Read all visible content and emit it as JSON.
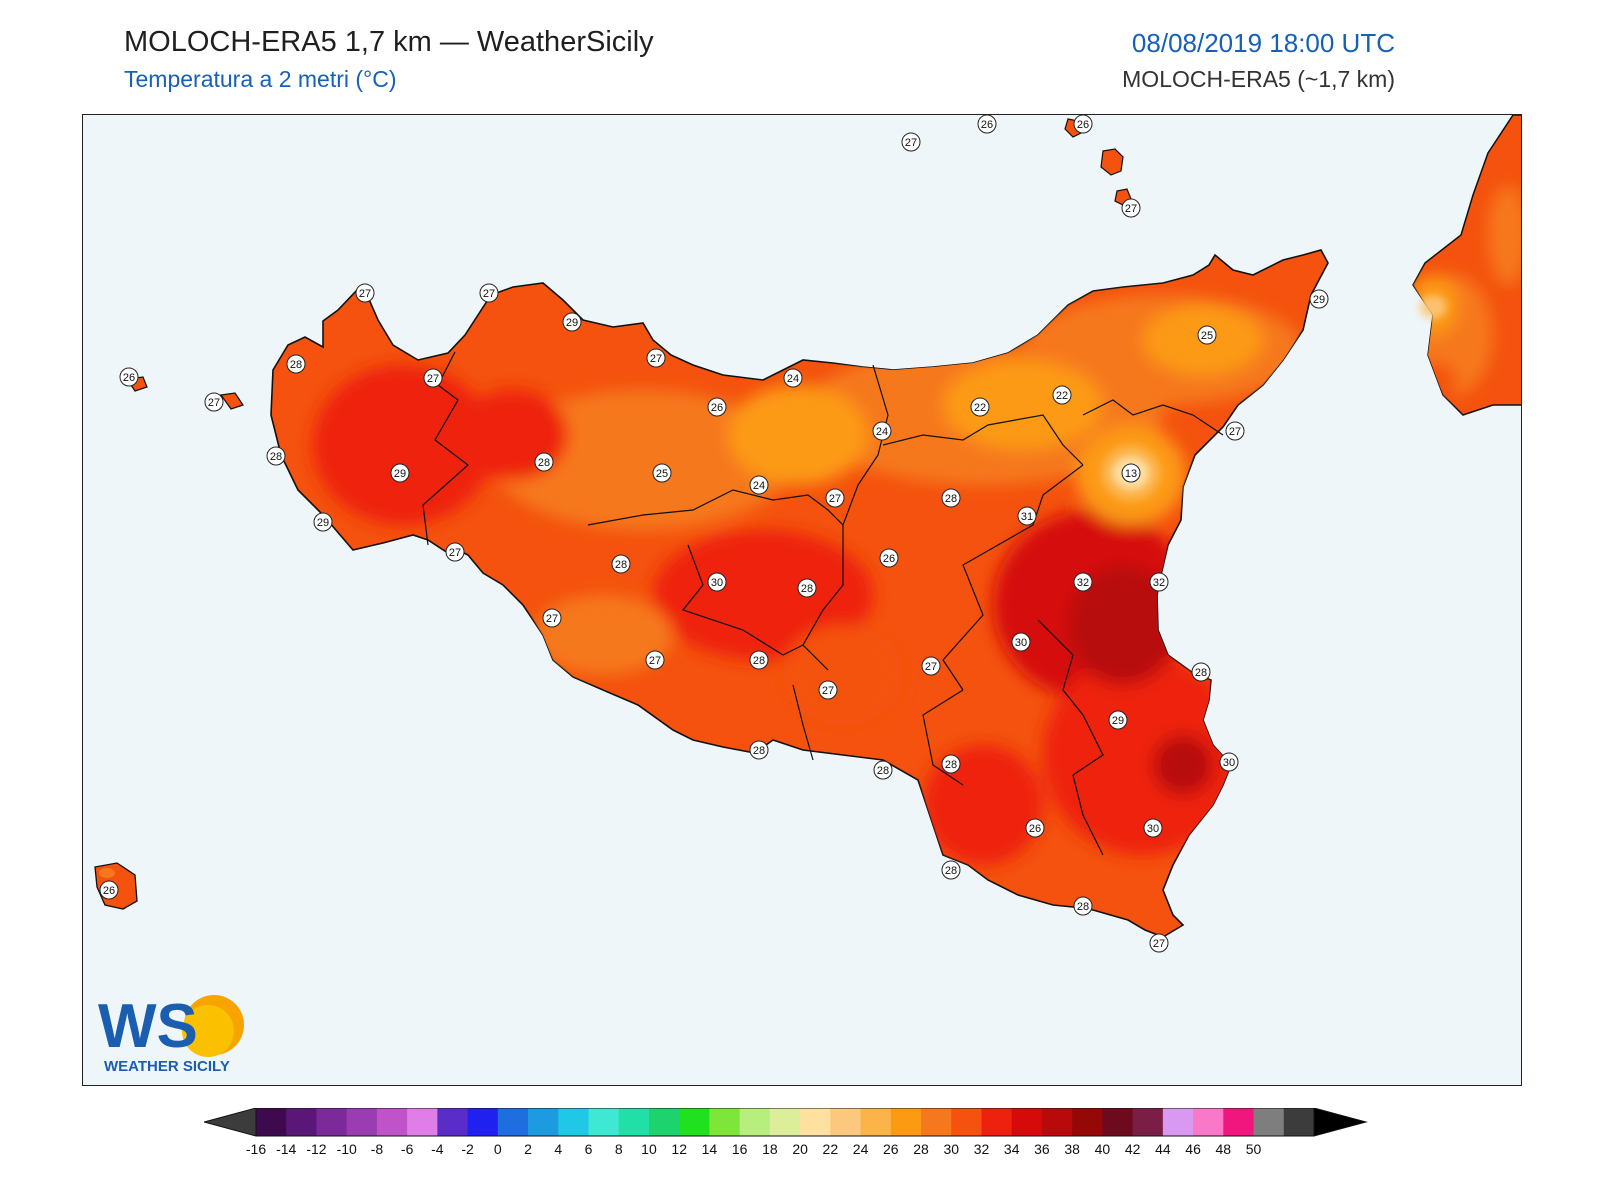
{
  "header": {
    "title": "MOLOCH-ERA5 1,7 km — WeatherSicily",
    "subtitle": "Temperatura a 2 metri (°C)",
    "datetime": "08/08/2019 18:00 UTC",
    "model": "MOLOCH-ERA5 (~1,7 km)"
  },
  "logo": {
    "letters": "WS",
    "caption": "WEATHER SICILY"
  },
  "station_labels": [
    {
      "value": "27"
    },
    {
      "value": "26"
    },
    {
      "value": "26"
    },
    {
      "value": "27"
    },
    {
      "value": "27"
    },
    {
      "value": "27"
    },
    {
      "value": "29"
    },
    {
      "value": "27"
    },
    {
      "value": "29"
    },
    {
      "value": "28"
    },
    {
      "value": "27"
    },
    {
      "value": "26"
    },
    {
      "value": "27"
    },
    {
      "value": "24"
    },
    {
      "value": "26"
    },
    {
      "value": "22"
    },
    {
      "value": "22"
    },
    {
      "value": "25"
    },
    {
      "value": "24"
    },
    {
      "value": "27"
    },
    {
      "value": "28"
    },
    {
      "value": "28"
    },
    {
      "value": "29"
    },
    {
      "value": "25"
    },
    {
      "value": "24"
    },
    {
      "value": "27"
    },
    {
      "value": "28"
    },
    {
      "value": "13"
    },
    {
      "value": "31"
    },
    {
      "value": "29"
    },
    {
      "value": "27"
    },
    {
      "value": "26"
    },
    {
      "value": "28"
    },
    {
      "value": "30"
    },
    {
      "value": "28"
    },
    {
      "value": "32"
    },
    {
      "value": "32"
    },
    {
      "value": "27"
    },
    {
      "value": "30"
    },
    {
      "value": "27"
    },
    {
      "value": "28"
    },
    {
      "value": "27"
    },
    {
      "value": "28"
    },
    {
      "value": "27"
    },
    {
      "value": "29"
    },
    {
      "value": "28"
    },
    {
      "value": "28"
    },
    {
      "value": "28"
    },
    {
      "value": "30"
    },
    {
      "value": "26"
    },
    {
      "value": "30"
    },
    {
      "value": "28"
    },
    {
      "value": "28"
    },
    {
      "value": "27"
    },
    {
      "value": "26"
    }
  ],
  "colorbar": {
    "ticks": [
      "-16",
      "-14",
      "-12",
      "-10",
      "-8",
      "-6",
      "-4",
      "-2",
      "0",
      "2",
      "4",
      "6",
      "8",
      "10",
      "12",
      "14",
      "16",
      "18",
      "20",
      "22",
      "24",
      "26",
      "28",
      "30",
      "32",
      "34",
      "36",
      "38",
      "40",
      "42",
      "44",
      "46",
      "48",
      "50"
    ],
    "colors": [
      "#3d0a4e",
      "#5a1777",
      "#7b2a9a",
      "#9a3db3",
      "#c053c8",
      "#e07ee8",
      "#5a2dc8",
      "#2020f0",
      "#1e6ee0",
      "#1e9ae0",
      "#1ec8e6",
      "#3ee8d2",
      "#20e0a8",
      "#1ed26e",
      "#20e020",
      "#7ee63a",
      "#b8ee7e",
      "#dcee9a",
      "#fee0a0",
      "#fcc87e",
      "#fcb44a",
      "#fc9a14",
      "#f6781e",
      "#f4520e",
      "#ee200e",
      "#d60a0a",
      "#b80a0a",
      "#960808",
      "#6e0a1e",
      "#7a1e46",
      "#d89af0",
      "#fa78c8",
      "#f0167e",
      "#7e7e7e",
      "#3c3c3c"
    ],
    "under_color": "#3c3c3c",
    "over_color": "#000000"
  }
}
